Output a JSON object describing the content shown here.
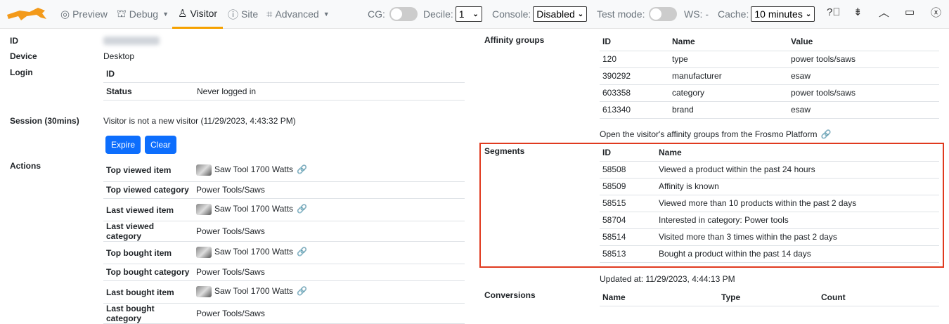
{
  "toolbar": {
    "nav": [
      {
        "label": "Preview",
        "icon": "eye-icon"
      },
      {
        "label": "Debug",
        "icon": "bug-icon"
      },
      {
        "label": "Visitor",
        "icon": "user-icon"
      },
      {
        "label": "Site",
        "icon": "info-icon"
      },
      {
        "label": "Advanced",
        "icon": "chip-icon"
      }
    ],
    "cg_label": "CG:",
    "decile_label": "Decile:",
    "decile_value": "1",
    "console_label": "Console:",
    "console_value": "Disabled",
    "test_mode_label": "Test mode:",
    "ws_label": "WS: -",
    "cache_label": "Cache:",
    "cache_value": "10 minutes",
    "cg_on": false,
    "test_mode_on": false,
    "accent": "#f5a100"
  },
  "visitor": {
    "id_label": "ID",
    "device_label": "Device",
    "device_value": "Desktop",
    "login_label": "Login",
    "login": {
      "id_label": "ID",
      "status_label": "Status",
      "status_value": "Never logged in"
    },
    "session_label": "Session (30mins)",
    "session_value": "Visitor is not a new visitor (11/29/2023, 4:43:32 PM)",
    "expire_label": "Expire",
    "clear_label": "Clear",
    "actions_label": "Actions",
    "actions": [
      {
        "label": "Top viewed item",
        "value": "Saw Tool 1700 Watts",
        "item": true
      },
      {
        "label": "Top viewed category",
        "value": "Power Tools/Saws",
        "item": false
      },
      {
        "label": "Last viewed item",
        "value": "Saw Tool 1700 Watts",
        "item": true
      },
      {
        "label": "Last viewed category",
        "value": "Power Tools/Saws",
        "item": false
      },
      {
        "label": "Top bought item",
        "value": "Saw Tool 1700 Watts",
        "item": true
      },
      {
        "label": "Top bought category",
        "value": "Power Tools/Saws",
        "item": false
      },
      {
        "label": "Last bought item",
        "value": "Saw Tool 1700 Watts",
        "item": true
      },
      {
        "label": "Last bought category",
        "value": "Power Tools/Saws",
        "item": false
      }
    ]
  },
  "affinity": {
    "label": "Affinity groups",
    "headers": [
      "ID",
      "Name",
      "Value"
    ],
    "rows": [
      [
        "120",
        "type",
        "power tools/saws"
      ],
      [
        "390292",
        "manufacturer",
        "esaw"
      ],
      [
        "603358",
        "category",
        "power tools/saws"
      ],
      [
        "613340",
        "brand",
        "esaw"
      ]
    ],
    "link": "Open the visitor's affinity groups from the Frosmo Platform"
  },
  "segments": {
    "label": "Segments",
    "headers": [
      "ID",
      "Name"
    ],
    "rows": [
      [
        "58508",
        "Viewed a product within the past 24 hours"
      ],
      [
        "58509",
        "Affinity is known"
      ],
      [
        "58515",
        "Viewed more than 10 products within the past 2 days"
      ],
      [
        "58704",
        "Interested in category: Power tools"
      ],
      [
        "58514",
        "Visited more than 3 times within the past 2 days"
      ],
      [
        "58513",
        "Bought a product within the past 14 days"
      ]
    ],
    "updated": "Updated at: 11/29/2023, 4:44:13 PM",
    "highlight": "#e03a1f"
  },
  "conversions": {
    "label": "Conversions",
    "headers": [
      "Name",
      "Type",
      "Count"
    ]
  }
}
